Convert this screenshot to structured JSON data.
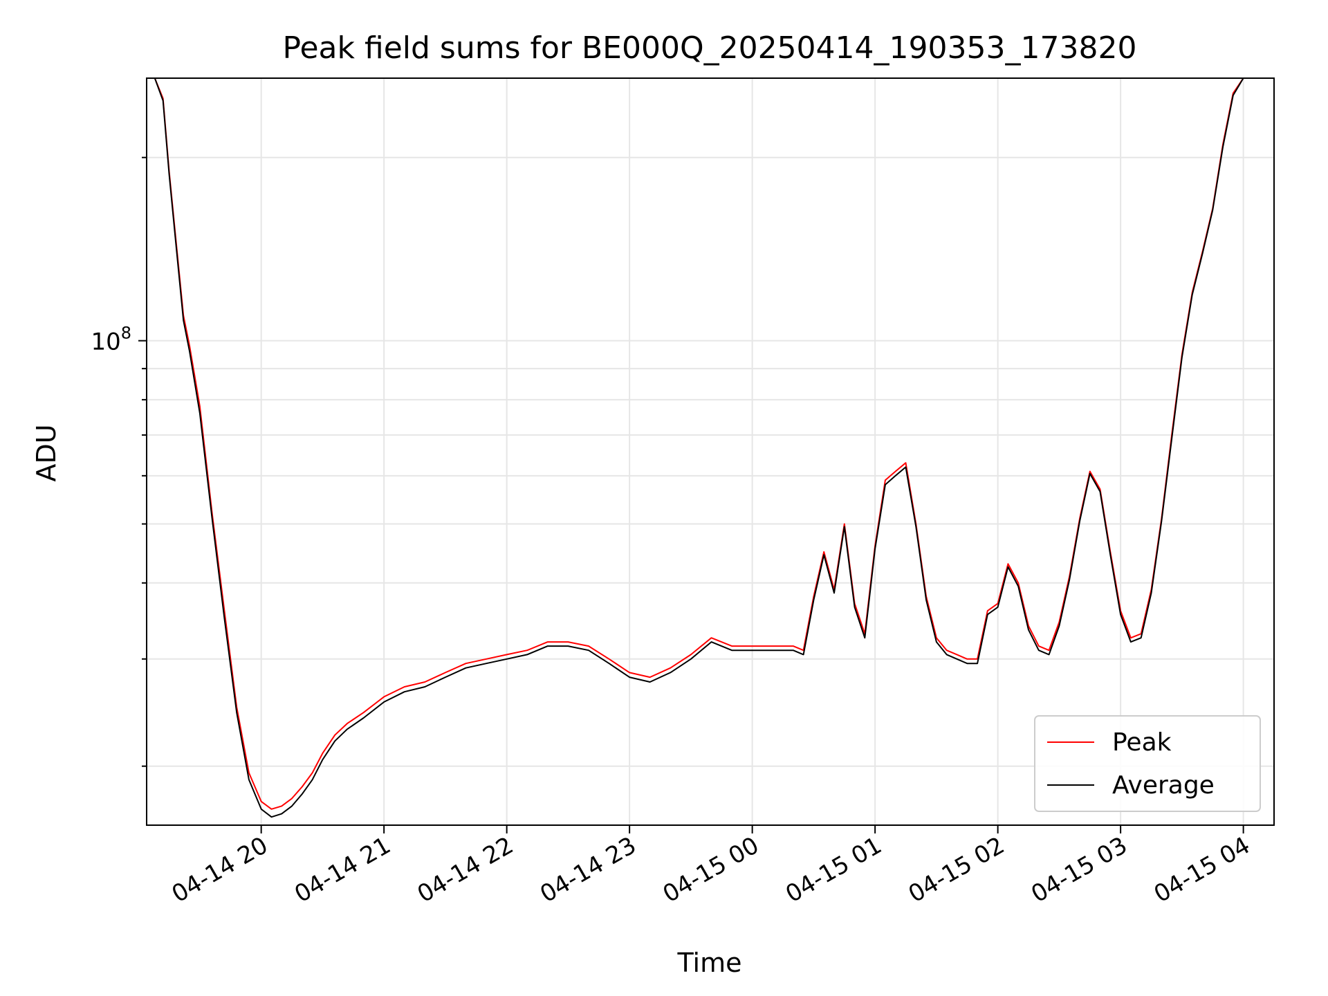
{
  "chart_data": {
    "type": "line",
    "title": "Peak field sums for BE000Q_20250414_190353_173820",
    "xlabel": "Time",
    "ylabel": "ADU",
    "yscale": "log",
    "ylim": [
      16000000,
      270000000
    ],
    "xlim": [
      "2025-04-14 19:04",
      "2025-04-15 04:15"
    ],
    "grid": true,
    "legend_position": "lower right",
    "x_tick_labels": [
      "04-14 20",
      "04-14 21",
      "04-14 22",
      "04-14 23",
      "04-15 00",
      "04-15 01",
      "04-15 02",
      "04-15 03",
      "04-15 04"
    ],
    "x_ticks": [
      "2025-04-14 20:00",
      "2025-04-14 21:00",
      "2025-04-14 22:00",
      "2025-04-14 23:00",
      "2025-04-15 00:00",
      "2025-04-15 01:00",
      "2025-04-15 02:00",
      "2025-04-15 03:00",
      "2025-04-15 04:00"
    ],
    "y_major_tick_labels": [
      {
        "base": "10",
        "exp": "8",
        "value": 100000000
      }
    ],
    "series": [
      {
        "name": "Peak",
        "color": "#ff0000",
        "x": [
          "2025-04-14 19:04",
          "2025-04-14 19:08",
          "2025-04-14 19:12",
          "2025-04-14 19:15",
          "2025-04-14 19:18",
          "2025-04-14 19:22",
          "2025-04-14 19:25",
          "2025-04-14 19:30",
          "2025-04-14 19:36",
          "2025-04-14 19:42",
          "2025-04-14 19:48",
          "2025-04-14 19:54",
          "2025-04-14 20:00",
          "2025-04-14 20:05",
          "2025-04-14 20:10",
          "2025-04-14 20:15",
          "2025-04-14 20:20",
          "2025-04-14 20:25",
          "2025-04-14 20:30",
          "2025-04-14 20:36",
          "2025-04-14 20:42",
          "2025-04-14 20:50",
          "2025-04-14 21:00",
          "2025-04-14 21:10",
          "2025-04-14 21:20",
          "2025-04-14 21:30",
          "2025-04-14 21:40",
          "2025-04-14 21:50",
          "2025-04-14 22:00",
          "2025-04-14 22:10",
          "2025-04-14 22:20",
          "2025-04-14 22:30",
          "2025-04-14 22:40",
          "2025-04-14 22:50",
          "2025-04-14 23:00",
          "2025-04-14 23:10",
          "2025-04-14 23:20",
          "2025-04-14 23:30",
          "2025-04-14 23:40",
          "2025-04-14 23:50",
          "2025-04-15 00:00",
          "2025-04-15 00:10",
          "2025-04-15 00:20",
          "2025-04-15 00:25",
          "2025-04-15 00:30",
          "2025-04-15 00:35",
          "2025-04-15 00:40",
          "2025-04-15 00:45",
          "2025-04-15 00:50",
          "2025-04-15 00:55",
          "2025-04-15 01:00",
          "2025-04-15 01:05",
          "2025-04-15 01:10",
          "2025-04-15 01:15",
          "2025-04-15 01:20",
          "2025-04-15 01:25",
          "2025-04-15 01:30",
          "2025-04-15 01:35",
          "2025-04-15 01:40",
          "2025-04-15 01:45",
          "2025-04-15 01:50",
          "2025-04-15 01:55",
          "2025-04-15 02:00",
          "2025-04-15 02:05",
          "2025-04-15 02:10",
          "2025-04-15 02:15",
          "2025-04-15 02:20",
          "2025-04-15 02:25",
          "2025-04-15 02:30",
          "2025-04-15 02:35",
          "2025-04-15 02:40",
          "2025-04-15 02:45",
          "2025-04-15 02:50",
          "2025-04-15 02:55",
          "2025-04-15 03:00",
          "2025-04-15 03:05",
          "2025-04-15 03:10",
          "2025-04-15 03:15",
          "2025-04-15 03:20",
          "2025-04-15 03:25",
          "2025-04-15 03:30",
          "2025-04-15 03:35",
          "2025-04-15 03:40",
          "2025-04-15 03:45",
          "2025-04-15 03:50",
          "2025-04-15 03:55",
          "2025-04-15 04:00"
        ],
        "values": [
          270000000,
          270000000,
          250000000,
          190000000,
          150000000,
          110000000,
          98000000,
          78000000,
          52000000,
          36000000,
          25000000,
          19500000,
          17500000,
          17000000,
          17200000,
          17700000,
          18500000,
          19500000,
          21000000,
          22500000,
          23500000,
          24500000,
          26000000,
          27000000,
          27500000,
          28500000,
          29500000,
          30000000,
          30500000,
          31000000,
          32000000,
          32000000,
          31500000,
          30000000,
          28500000,
          28000000,
          29000000,
          30500000,
          32500000,
          31500000,
          31500000,
          31500000,
          31500000,
          31000000,
          38000000,
          45000000,
          39000000,
          50000000,
          37000000,
          33000000,
          46000000,
          59000000,
          61000000,
          63000000,
          50000000,
          38000000,
          32500000,
          31000000,
          30500000,
          30000000,
          30000000,
          36000000,
          37000000,
          43000000,
          40000000,
          34000000,
          31500000,
          31000000,
          34500000,
          41000000,
          51000000,
          61000000,
          57000000,
          45000000,
          36000000,
          32500000,
          33000000,
          39000000,
          51000000,
          70000000,
          95000000,
          120000000,
          140000000,
          165000000,
          210000000,
          255000000,
          270000000
        ]
      },
      {
        "name": "Average",
        "color": "#000000",
        "x": [
          "2025-04-14 19:04",
          "2025-04-14 19:08",
          "2025-04-14 19:12",
          "2025-04-14 19:15",
          "2025-04-14 19:18",
          "2025-04-14 19:22",
          "2025-04-14 19:25",
          "2025-04-14 19:30",
          "2025-04-14 19:36",
          "2025-04-14 19:42",
          "2025-04-14 19:48",
          "2025-04-14 19:54",
          "2025-04-14 20:00",
          "2025-04-14 20:05",
          "2025-04-14 20:10",
          "2025-04-14 20:15",
          "2025-04-14 20:20",
          "2025-04-14 20:25",
          "2025-04-14 20:30",
          "2025-04-14 20:36",
          "2025-04-14 20:42",
          "2025-04-14 20:50",
          "2025-04-14 21:00",
          "2025-04-14 21:10",
          "2025-04-14 21:20",
          "2025-04-14 21:30",
          "2025-04-14 21:40",
          "2025-04-14 21:50",
          "2025-04-14 22:00",
          "2025-04-14 22:10",
          "2025-04-14 22:20",
          "2025-04-14 22:30",
          "2025-04-14 22:40",
          "2025-04-14 22:50",
          "2025-04-14 23:00",
          "2025-04-14 23:10",
          "2025-04-14 23:20",
          "2025-04-14 23:30",
          "2025-04-14 23:40",
          "2025-04-14 23:50",
          "2025-04-15 00:00",
          "2025-04-15 00:10",
          "2025-04-15 00:20",
          "2025-04-15 00:25",
          "2025-04-15 00:30",
          "2025-04-15 00:35",
          "2025-04-15 00:40",
          "2025-04-15 00:45",
          "2025-04-15 00:50",
          "2025-04-15 00:55",
          "2025-04-15 01:00",
          "2025-04-15 01:05",
          "2025-04-15 01:10",
          "2025-04-15 01:15",
          "2025-04-15 01:20",
          "2025-04-15 01:25",
          "2025-04-15 01:30",
          "2025-04-15 01:35",
          "2025-04-15 01:40",
          "2025-04-15 01:45",
          "2025-04-15 01:50",
          "2025-04-15 01:55",
          "2025-04-15 02:00",
          "2025-04-15 02:05",
          "2025-04-15 02:10",
          "2025-04-15 02:15",
          "2025-04-15 02:20",
          "2025-04-15 02:25",
          "2025-04-15 02:30",
          "2025-04-15 02:35",
          "2025-04-15 02:40",
          "2025-04-15 02:45",
          "2025-04-15 02:50",
          "2025-04-15 02:55",
          "2025-04-15 03:00",
          "2025-04-15 03:05",
          "2025-04-15 03:10",
          "2025-04-15 03:15",
          "2025-04-15 03:20",
          "2025-04-15 03:25",
          "2025-04-15 03:30",
          "2025-04-15 03:35",
          "2025-04-15 03:40",
          "2025-04-15 03:45",
          "2025-04-15 03:50",
          "2025-04-15 03:55",
          "2025-04-15 04:00"
        ],
        "values": [
          270000000,
          270000000,
          248000000,
          188000000,
          148000000,
          108000000,
          96000000,
          76000000,
          51000000,
          35000000,
          24500000,
          19000000,
          17000000,
          16500000,
          16700000,
          17200000,
          18000000,
          19000000,
          20500000,
          22000000,
          23000000,
          24000000,
          25500000,
          26500000,
          27000000,
          28000000,
          29000000,
          29500000,
          30000000,
          30500000,
          31500000,
          31500000,
          31000000,
          29500000,
          28000000,
          27500000,
          28500000,
          30000000,
          32000000,
          31000000,
          31000000,
          31000000,
          31000000,
          30500000,
          37500000,
          44500000,
          38500000,
          49500000,
          36500000,
          32500000,
          45500000,
          58000000,
          60000000,
          62000000,
          49500000,
          37500000,
          32000000,
          30500000,
          30000000,
          29500000,
          29500000,
          35500000,
          36500000,
          42500000,
          39500000,
          33500000,
          31000000,
          30500000,
          34000000,
          40500000,
          50500000,
          60500000,
          56500000,
          44500000,
          35500000,
          32000000,
          32500000,
          38500000,
          50500000,
          69000000,
          94000000,
          119000000,
          139000000,
          164000000,
          208000000,
          253000000,
          270000000
        ]
      }
    ]
  }
}
